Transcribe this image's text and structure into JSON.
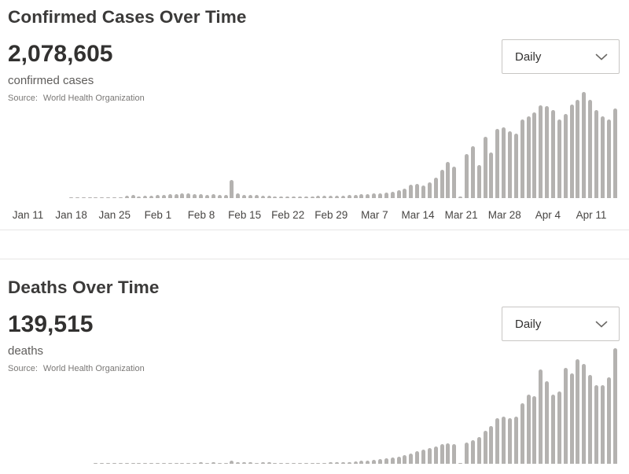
{
  "colors": {
    "bar": "#b4b2b0",
    "title": "#3b3a39",
    "metric": "#323130",
    "metric_label": "#5f5d5b",
    "source": "#7a7876",
    "axis_label": "#484644",
    "divider": "#e7e6e5",
    "dropdown_border": "#c8c6c4",
    "chevron": "#6b6966"
  },
  "sections": [
    {
      "title": "Confirmed Cases Over Time",
      "metric_value": "2,078,605",
      "metric_label": "confirmed cases",
      "source_label": "Source:",
      "source_value": "World Health Organization",
      "dropdown": {
        "value": "Daily"
      }
    },
    {
      "title": "Deaths Over Time",
      "metric_value": "139,515",
      "metric_label": "deaths",
      "source_label": "Source:",
      "source_value": "World Health Organization",
      "dropdown": {
        "value": "Daily"
      }
    }
  ],
  "chart_data": [
    {
      "type": "bar",
      "title": "Confirmed Cases Over Time",
      "series_name": "daily new confirmed cases",
      "x_range": {
        "start": "Jan 11",
        "end": "Apr 15",
        "step": "1 day"
      },
      "x_tick_labels": [
        "Jan 11",
        "Jan 18",
        "Jan 25",
        "Feb 1",
        "Feb 8",
        "Feb 15",
        "Feb 22",
        "Feb 29",
        "Mar 7",
        "Mar 14",
        "Mar 21",
        "Mar 28",
        "Apr 4",
        "Apr 11"
      ],
      "x_axis_visible": true,
      "ylim": [
        0,
        90000
      ],
      "grid": false,
      "legend": false,
      "annotations": [
        "spike on Feb 13 ~15,000",
        "near-zero reporting glitch bar ~Mar 21"
      ],
      "values": [
        0,
        0,
        0,
        0,
        0,
        0,
        0,
        17,
        59,
        77,
        151,
        154,
        265,
        468,
        684,
        786,
        1781,
        2659,
        1370,
        1973,
        2100,
        2310,
        2640,
        2970,
        3300,
        3960,
        3630,
        3300,
        3300,
        2640,
        2970,
        2640,
        2310,
        15152,
        3960,
        2640,
        2310,
        2310,
        1980,
        1980,
        990,
        1320,
        1320,
        990,
        990,
        1320,
        1320,
        1650,
        1650,
        1980,
        1980,
        1980,
        2310,
        2640,
        2970,
        3300,
        3960,
        3960,
        4620,
        5280,
        6600,
        7920,
        11200,
        11900,
        10600,
        13200,
        17200,
        23800,
        30400,
        26400,
        1320,
        37000,
        43600,
        27700,
        51500,
        38300,
        58100,
        59400,
        56100,
        54100,
        66000,
        68600,
        71300,
        77200,
        76600,
        73900,
        66000,
        70600,
        77900,
        81800,
        88400,
        81800,
        73900,
        68600,
        66000,
        75200
      ]
    },
    {
      "type": "bar",
      "title": "Deaths Over Time",
      "series_name": "daily new deaths",
      "x_range": {
        "start": "Jan 11",
        "end": "Apr 15",
        "step": "1 day"
      },
      "x_tick_labels": [],
      "x_axis_visible": false,
      "ylim": [
        0,
        10000
      ],
      "grid": false,
      "legend": false,
      "annotations": [
        "small spike on Feb 13 ~254",
        "near-zero reporting glitch bar ~Mar 21",
        "x-axis labels cut off at bottom of screenshot"
      ],
      "values": [
        0,
        0,
        0,
        0,
        0,
        0,
        0,
        0,
        0,
        0,
        0,
        8,
        16,
        26,
        42,
        26,
        38,
        43,
        46,
        45,
        57,
        64,
        66,
        72,
        73,
        86,
        89,
        97,
        108,
        97,
        103,
        97,
        94,
        254,
        143,
        142,
        106,
        98,
        115,
        114,
        60,
        77,
        63,
        68,
        64,
        70,
        72,
        84,
        96,
        106,
        105,
        135,
        170,
        205,
        240,
        275,
        340,
        410,
        480,
        545,
        610,
        750,
        885,
        1090,
        1225,
        1360,
        1495,
        1700,
        1770,
        1700,
        100,
        1840,
        2040,
        2310,
        2860,
        3260,
        3940,
        4080,
        3940,
        4080,
        5240,
        5980,
        5850,
        8160,
        7140,
        5990,
        6260,
        8300,
        7820,
        9040,
        8640,
        7680,
        6800,
        6800,
        7480,
        9995
      ]
    }
  ]
}
